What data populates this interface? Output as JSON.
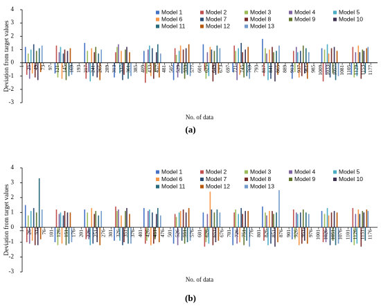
{
  "chart_data": [
    {
      "type": "bar",
      "caption": "(a)",
      "ylabel": "Deviation from target values",
      "xlabel": "No. of data",
      "xlim": [
        1,
        1200
      ],
      "ylim": [
        -3,
        4
      ],
      "yticks": [
        -3,
        -2,
        -1,
        0,
        1,
        2,
        3,
        4
      ],
      "xticks": [
        1,
        25,
        49,
        73,
        97,
        121,
        145,
        169,
        193,
        217,
        241,
        265,
        289,
        313,
        337,
        361,
        385,
        409,
        433,
        457,
        481,
        505,
        529,
        553,
        577,
        601,
        625,
        649,
        673,
        697,
        721,
        745,
        769,
        793,
        817,
        841,
        865,
        889,
        913,
        937,
        961,
        985,
        1009,
        1033,
        1057,
        1081,
        1105,
        1129,
        1153,
        1177
      ],
      "x": [
        40,
        140,
        240,
        340,
        440,
        540,
        640,
        740,
        840,
        940,
        1040,
        1140
      ],
      "series": [
        {
          "name": "Model 1",
          "color": "#4472c4",
          "values": [
            1.2,
            -0.8,
            1.5,
            -1.1,
            0.9,
            -1.3,
            1.4,
            -0.7,
            1.8,
            -1.2,
            1.1,
            -0.9
          ]
        },
        {
          "name": "Model 2",
          "color": "#c0504d",
          "values": [
            -0.9,
            1.3,
            -1.2,
            0.8,
            -1.5,
            1.1,
            -0.6,
            1.3,
            -1.0,
            0.9,
            -1.4,
            1.2
          ]
        },
        {
          "name": "Model 3",
          "color": "#9bbb59",
          "values": [
            0.7,
            -1.1,
            0.9,
            1.2,
            -0.8,
            0.6,
            -1.2,
            0.9,
            1.1,
            -0.7,
            1.0,
            -1.1
          ]
        },
        {
          "name": "Model 4",
          "color": "#8064a2",
          "values": [
            -1.2,
            0.8,
            -0.7,
            1.4,
            1.0,
            -1.1,
            0.8,
            -1.3,
            0.7,
            1.2,
            -0.9,
            0.8
          ]
        },
        {
          "name": "Model 5",
          "color": "#4bacc6",
          "values": [
            1.0,
            1.2,
            -1.4,
            -0.8,
            1.3,
            0.9,
            -1.0,
            1.1,
            -1.3,
            0.8,
            1.4,
            -1.0
          ]
        },
        {
          "name": "Model 6",
          "color": "#f79646",
          "values": [
            -0.8,
            -1.2,
            1.1,
            0.9,
            -1.0,
            1.3,
            1.2,
            -0.9,
            1.0,
            -1.1,
            0.7,
            1.3
          ]
        },
        {
          "name": "Model 7",
          "color": "#2c4d75",
          "values": [
            1.4,
            0.7,
            -1.0,
            -1.3,
            1.1,
            -0.8,
            1.0,
            1.5,
            -1.2,
            0.9,
            -1.1,
            0.8
          ]
        },
        {
          "name": "Model 8",
          "color": "#772c2a",
          "values": [
            -1.1,
            1.0,
            0.8,
            -0.9,
            -1.2,
            1.0,
            -1.4,
            0.8,
            1.2,
            -1.0,
            1.1,
            -1.2
          ]
        },
        {
          "name": "Model 9",
          "color": "#5f7530",
          "values": [
            0.9,
            -1.3,
            1.2,
            1.0,
            -0.7,
            -1.2,
            0.9,
            -1.1,
            0.8,
            1.3,
            -0.8,
            1.0
          ]
        },
        {
          "name": "Model 10",
          "color": "#3f3151",
          "values": [
            -1.3,
            0.9,
            -1.1,
            1.2,
            0.8,
            1.1,
            -0.9,
            1.0,
            -1.4,
            -0.8,
            1.2,
            0.9
          ]
        },
        {
          "name": "Model 11",
          "color": "#276a7c",
          "values": [
            1.1,
            -1.0,
            0.7,
            -1.2,
            1.4,
            -0.9,
            1.3,
            -1.0,
            0.9,
            1.1,
            -1.3,
            -0.8
          ]
        },
        {
          "name": "Model 12",
          "color": "#b65708",
          "values": [
            -0.7,
            1.1,
            -1.3,
            0.8,
            -1.1,
            1.4,
            -0.8,
            1.2,
            -0.9,
            -1.2,
            0.9,
            1.1
          ]
        },
        {
          "name": "Model 13",
          "color": "#729aca",
          "values": [
            1.3,
            -0.9,
            1.0,
            -1.0,
            0.7,
            -1.0,
            1.1,
            -1.2,
            1.3,
            0.8,
            -1.0,
            1.2
          ]
        }
      ]
    },
    {
      "type": "bar",
      "caption": "(b)",
      "ylabel": "Deviation from target values",
      "xlabel": "No. of data",
      "xlim": [
        1,
        1200
      ],
      "ylim": [
        -3,
        4
      ],
      "yticks": [
        -3,
        -2,
        -1,
        0,
        1,
        2,
        3,
        4
      ],
      "xticks": [
        1,
        26,
        51,
        76,
        101,
        126,
        151,
        176,
        201,
        226,
        251,
        276,
        301,
        326,
        351,
        376,
        401,
        426,
        451,
        476,
        501,
        526,
        551,
        576,
        601,
        626,
        651,
        676,
        701,
        726,
        751,
        776,
        801,
        826,
        851,
        876,
        901,
        926,
        951,
        976,
        1001,
        1026,
        1051,
        1076,
        1101,
        1126,
        1151,
        1176
      ],
      "x": [
        40,
        140,
        240,
        340,
        440,
        540,
        640,
        740,
        840,
        940,
        1040,
        1140
      ],
      "series": [
        {
          "name": "Model 1",
          "color": "#4472c4",
          "values": [
            1.5,
            -1.0,
            1.2,
            -0.9,
            1.3,
            -1.1,
            1.0,
            -1.2,
            1.4,
            -0.8,
            1.1,
            -1.0
          ]
        },
        {
          "name": "Model 2",
          "color": "#c0504d",
          "values": [
            -1.0,
            1.2,
            -0.8,
            1.4,
            -1.1,
            0.9,
            -1.3,
            1.0,
            -0.9,
            1.2,
            -1.0,
            1.3
          ]
        },
        {
          "name": "Model 3",
          "color": "#9bbb59",
          "values": [
            0.8,
            -1.2,
            1.0,
            1.1,
            -0.9,
            0.7,
            -1.0,
            1.2,
            1.0,
            -0.8,
            0.9,
            -1.2
          ]
        },
        {
          "name": "Model 4",
          "color": "#8064a2",
          "values": [
            -1.1,
            0.9,
            -0.8,
            1.2,
            1.1,
            -1.2,
            0.9,
            -1.1,
            0.8,
            1.0,
            -1.0,
            0.9
          ]
        },
        {
          "name": "Model 5",
          "color": "#4bacc6",
          "values": [
            1.1,
            1.0,
            -1.2,
            -0.9,
            1.2,
            1.0,
            -1.1,
            0.9,
            -1.2,
            0.9,
            1.3,
            -1.1
          ]
        },
        {
          "name": "Model 6",
          "color": "#f79646",
          "values": [
            -0.9,
            -1.1,
            1.3,
            0.8,
            -1.2,
            1.1,
            2.4,
            -1.0,
            1.1,
            -1.2,
            0.8,
            1.2
          ]
        },
        {
          "name": "Model 7",
          "color": "#2c4d75",
          "values": [
            1.3,
            0.8,
            -1.1,
            -1.2,
            1.0,
            -0.9,
            1.2,
            1.3,
            -1.1,
            1.0,
            -1.2,
            0.9
          ]
        },
        {
          "name": "Model 8",
          "color": "#772c2a",
          "values": [
            -1.2,
            1.1,
            0.9,
            -1.0,
            -1.1,
            1.2,
            -1.2,
            0.9,
            1.1,
            -1.1,
            1.0,
            -1.3
          ]
        },
        {
          "name": "Model 9",
          "color": "#5f7530",
          "values": [
            1.0,
            -1.2,
            1.1,
            1.1,
            -0.8,
            -1.1,
            1.0,
            -1.2,
            0.9,
            1.2,
            -0.9,
            1.1
          ]
        },
        {
          "name": "Model 10",
          "color": "#3f3151",
          "values": [
            -1.2,
            1.0,
            -1.0,
            1.3,
            0.9,
            1.0,
            -1.0,
            1.1,
            -1.3,
            -0.9,
            1.1,
            1.0
          ]
        },
        {
          "name": "Model 11",
          "color": "#276a7c",
          "values": [
            3.3,
            -1.1,
            0.8,
            -1.1,
            1.3,
            -1.0,
            1.2,
            -0.9,
            1.0,
            1.0,
            -1.2,
            -0.9
          ]
        },
        {
          "name": "Model 12",
          "color": "#b65708",
          "values": [
            -0.8,
            1.0,
            -1.2,
            0.9,
            -1.0,
            1.3,
            -0.9,
            1.1,
            -1.0,
            -1.1,
            1.0,
            1.2
          ]
        },
        {
          "name": "Model 13",
          "color": "#729aca",
          "values": [
            1.2,
            -1.0,
            1.1,
            -1.1,
            0.8,
            -0.9,
            1.0,
            -1.3,
            2.5,
            0.9,
            -1.1,
            1.1
          ]
        }
      ]
    }
  ]
}
